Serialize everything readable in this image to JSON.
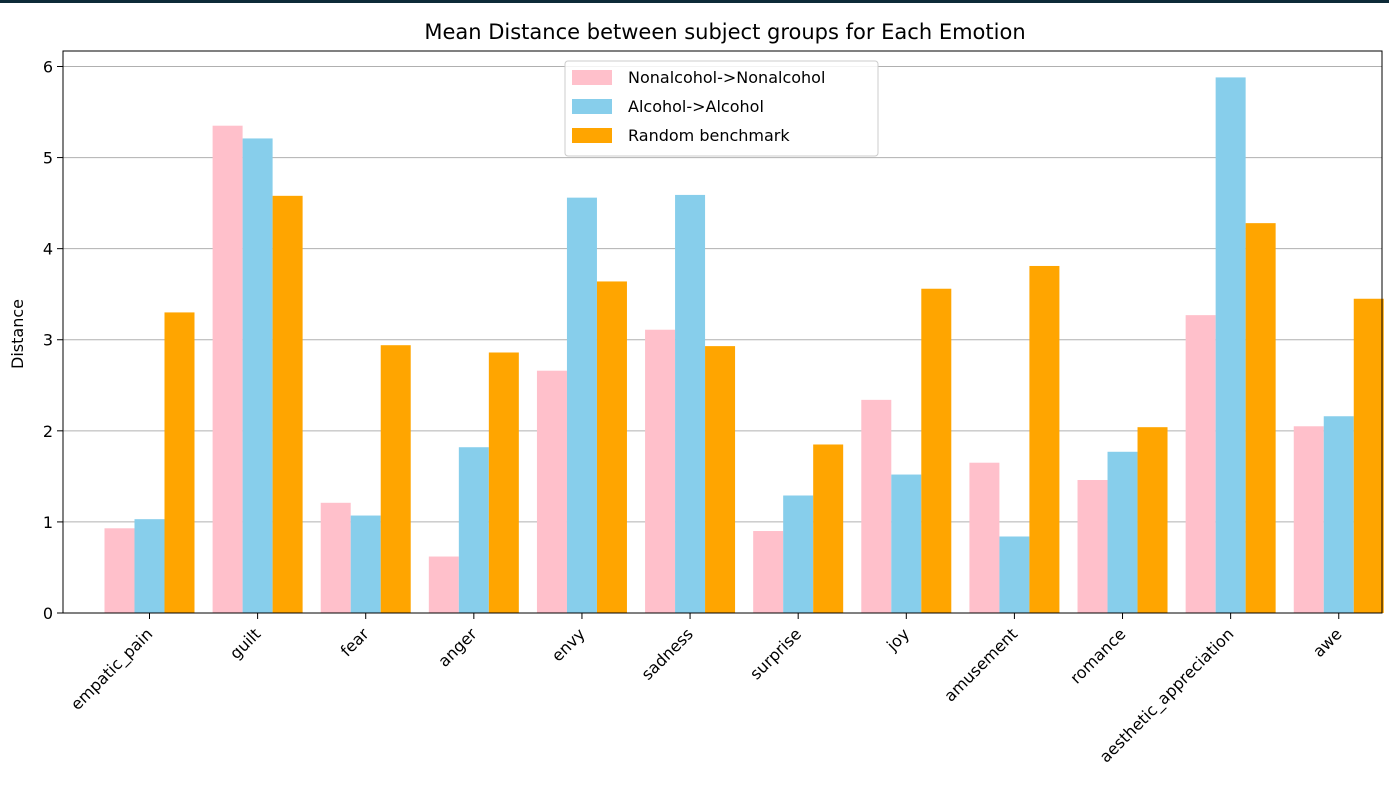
{
  "chart_data": {
    "type": "bar",
    "title": "Mean Distance between subject groups for Each Emotion",
    "xlabel": "",
    "ylabel": "Distance",
    "ylim": [
      0,
      6.17
    ],
    "yticks": [
      0,
      1,
      2,
      3,
      4,
      5,
      6
    ],
    "grid": "y",
    "legend_position": "top-center",
    "categories": [
      "empatic_pain",
      "guilt",
      "fear",
      "anger",
      "envy",
      "sadness",
      "surprise",
      "joy",
      "amusement",
      "romance",
      "aesthetic_appreciation",
      "awe"
    ],
    "series": [
      {
        "name": "Nonalcohol->Nonalcohol",
        "color": "#ffc0cb",
        "values": [
          0.93,
          5.35,
          1.21,
          0.62,
          2.66,
          3.11,
          0.9,
          2.34,
          1.65,
          1.46,
          3.27,
          2.05
        ]
      },
      {
        "name": "Alcohol->Alcohol",
        "color": "#87ceeb",
        "values": [
          1.03,
          5.21,
          1.07,
          1.82,
          4.56,
          4.59,
          1.29,
          1.52,
          0.84,
          1.77,
          5.88,
          2.16
        ]
      },
      {
        "name": "Random benchmark",
        "color": "#ffa500",
        "values": [
          3.3,
          4.58,
          2.94,
          2.86,
          3.64,
          2.93,
          1.85,
          3.56,
          3.81,
          2.04,
          4.28,
          3.45
        ]
      }
    ]
  }
}
